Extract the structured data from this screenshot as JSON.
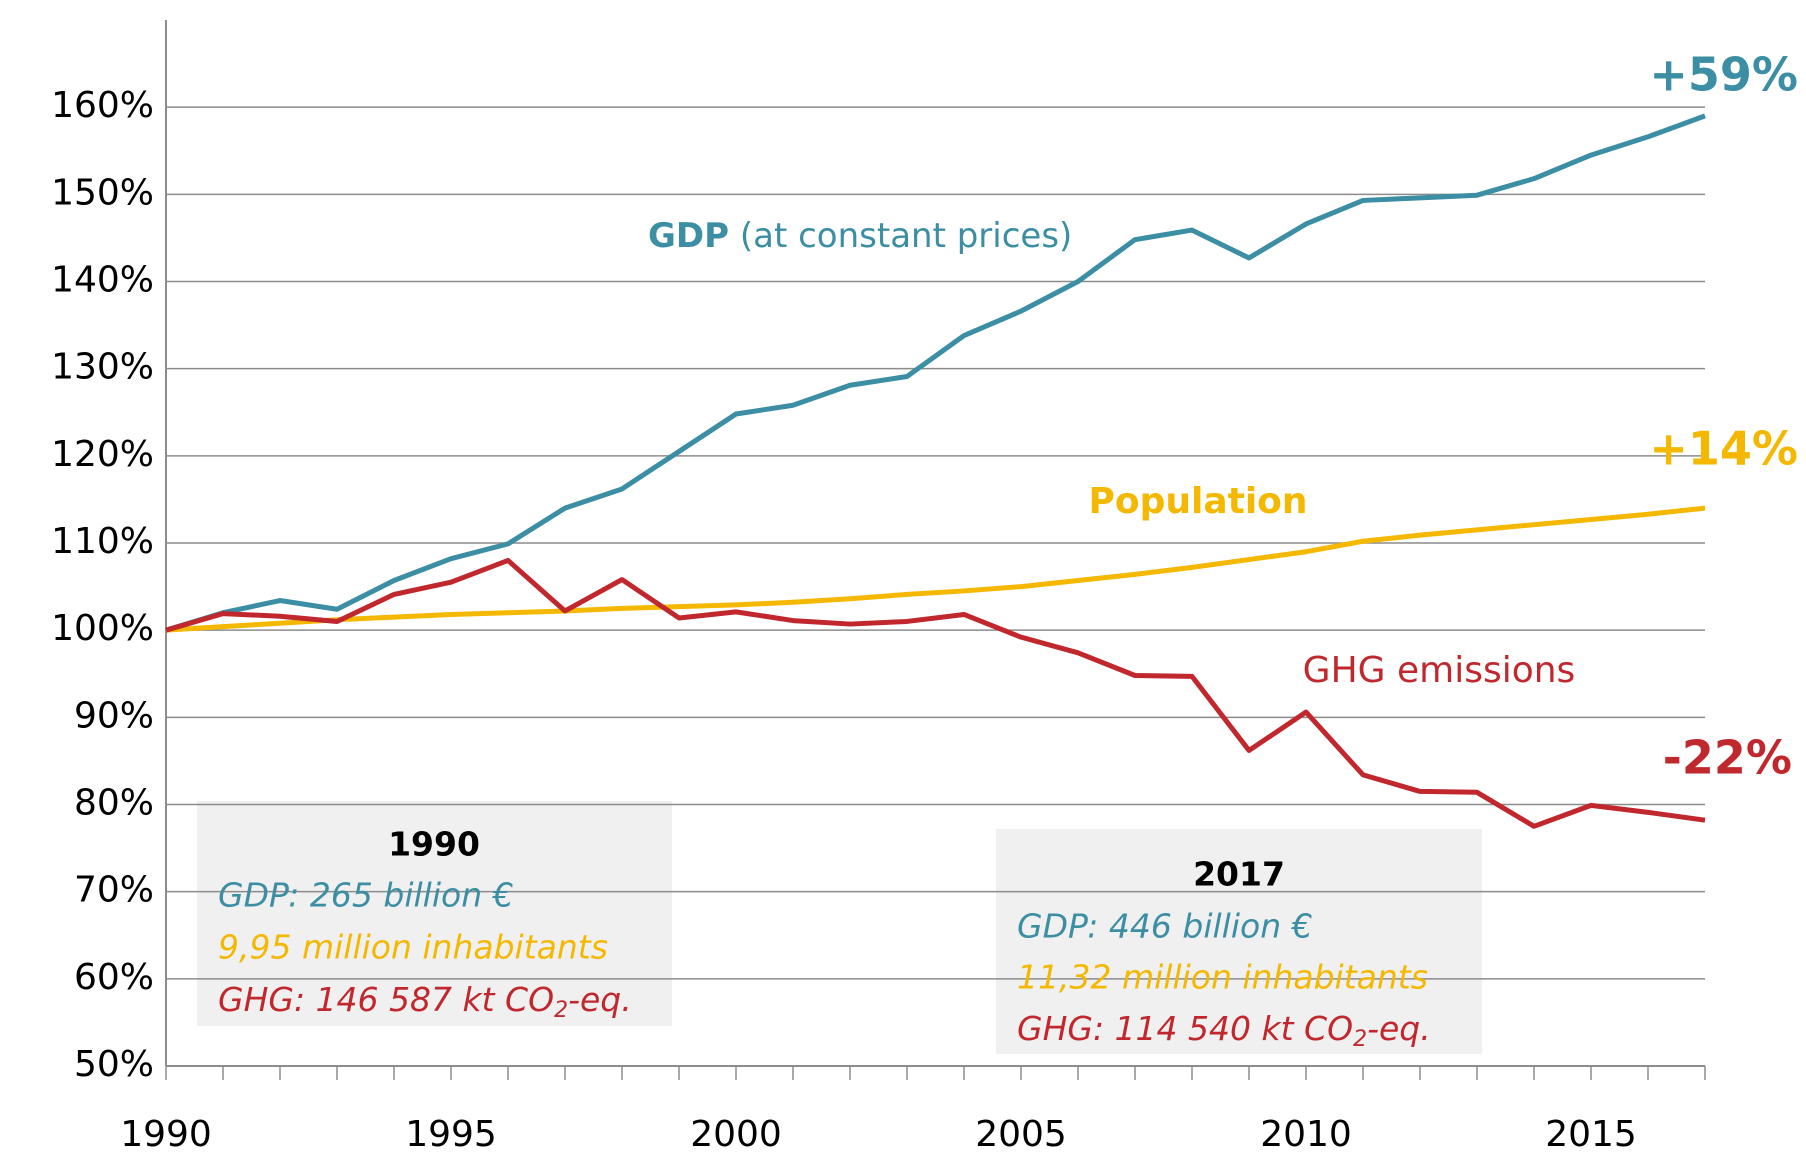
{
  "chart_data": {
    "type": "line",
    "x": [
      1990,
      1991,
      1992,
      1993,
      1994,
      1995,
      1996,
      1997,
      1998,
      1999,
      2000,
      2001,
      2002,
      2003,
      2004,
      2005,
      2006,
      2007,
      2008,
      2009,
      2010,
      2011,
      2012,
      2013,
      2014,
      2015,
      2016,
      2017
    ],
    "series": [
      {
        "name": "GDP",
        "color": "#3b8ea3",
        "values": [
          100,
          102,
          103.4,
          102.4,
          105.7,
          108.2,
          109.9,
          114,
          116.2,
          120.5,
          124.8,
          125.8,
          128.1,
          129.1,
          133.8,
          136.6,
          140,
          144.8,
          145.9,
          142.7,
          146.6,
          149.3,
          149.6,
          149.9,
          151.8,
          154.5,
          156.6,
          159
        ]
      },
      {
        "name": "Population",
        "color": "#f5b800",
        "values": [
          100,
          100.4,
          100.8,
          101.2,
          101.5,
          101.8,
          102,
          102.2,
          102.5,
          102.7,
          102.9,
          103.2,
          103.6,
          104.1,
          104.5,
          105,
          105.7,
          106.4,
          107.2,
          108.1,
          109,
          110.2,
          110.9,
          111.5,
          112.1,
          112.7,
          113.3,
          114
        ]
      },
      {
        "name": "GHG emissions",
        "color": "#c0282d",
        "values": [
          100,
          101.9,
          101.6,
          101,
          104.1,
          105.5,
          108,
          102.2,
          105.8,
          101.4,
          102.1,
          101.1,
          100.7,
          101,
          101.8,
          99.2,
          97.4,
          94.8,
          94.7,
          86.2,
          90.6,
          83.4,
          81.5,
          81.4,
          77.5,
          79.9,
          79.1,
          78.2
        ]
      }
    ],
    "xlim": [
      1990,
      2017
    ],
    "xticks": [
      1990,
      1995,
      2000,
      2005,
      2010,
      2015
    ],
    "ylim": [
      50,
      170
    ],
    "yticks": [
      {
        "value": 50,
        "label": "50%"
      },
      {
        "value": 60,
        "label": "60%"
      },
      {
        "value": 70,
        "label": "70%"
      },
      {
        "value": 80,
        "label": "80%"
      },
      {
        "value": 90,
        "label": "90%"
      },
      {
        "value": 100,
        "label": "100%"
      },
      {
        "value": 110,
        "label": "110%"
      },
      {
        "value": 120,
        "label": "120%"
      },
      {
        "value": 130,
        "label": "130%"
      },
      {
        "value": 140,
        "label": "140%"
      },
      {
        "value": 150,
        "label": "150%"
      },
      {
        "value": 160,
        "label": "160%"
      }
    ],
    "grid": true,
    "annotations": {
      "gdp_change": "+59%",
      "population_change": "+14%",
      "ghg_change": "-22%",
      "gdp_note": "(at constant prices)",
      "box_1990": {
        "title": "1990",
        "gdp": "GDP: 265 billion €",
        "population": "9,95 million inhabitants",
        "ghg": [
          "GHG: 146 587 kt CO",
          "2",
          "-eq."
        ]
      },
      "box_2017": {
        "title": "2017",
        "gdp": "GDP: 446  billion €",
        "population": "11,32 million inhabitants",
        "ghg": [
          "GHG: 114 540 kt CO",
          "2",
          "-eq."
        ]
      }
    }
  }
}
